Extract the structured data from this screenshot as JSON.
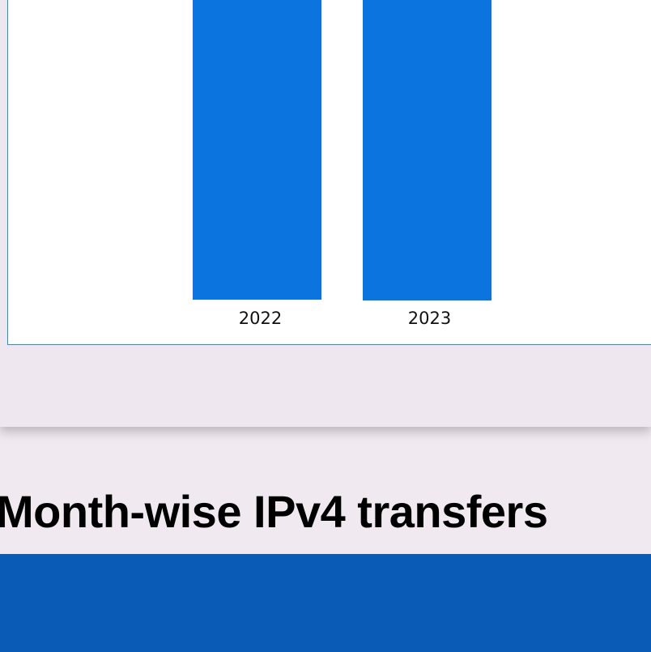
{
  "chart": {
    "categories": [
      "2022",
      "2023"
    ]
  },
  "heading": "Month-wise IPv4 transfers"
}
